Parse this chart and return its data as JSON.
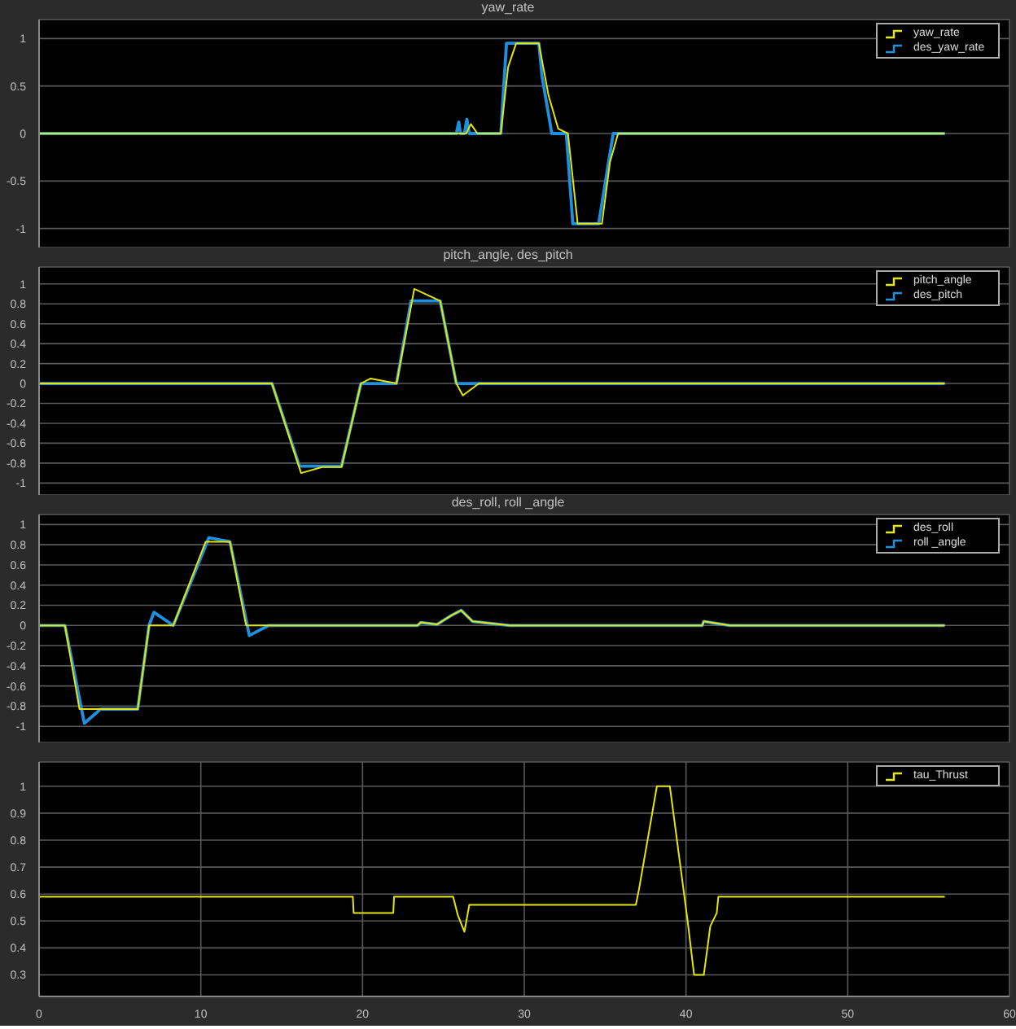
{
  "chart_data": [
    {
      "type": "line",
      "title": "yaw_rate",
      "xlim": [
        0,
        60
      ],
      "xticks": [
        0,
        10,
        20,
        30,
        40,
        50,
        60
      ],
      "ylim": [
        -1.2,
        1.2
      ],
      "yticks": [
        -1,
        -0.5,
        0,
        0.5,
        1
      ],
      "grid": true,
      "legend": "top right",
      "tick_labels": "y",
      "series": [
        {
          "name": "yaw_rate",
          "color": "#e6e600",
          "x": [
            0,
            25.8,
            26.4,
            26.7,
            27.1,
            28.55,
            29.0,
            29.5,
            30.9,
            31.5,
            32.1,
            32.7,
            33.3,
            34.8,
            35.3,
            35.8,
            56
          ],
          "values": [
            0,
            0,
            0,
            0.1,
            0,
            0,
            0.7,
            0.95,
            0.95,
            0.4,
            0.05,
            0,
            -0.95,
            -0.95,
            -0.3,
            0,
            0
          ]
        },
        {
          "name": "des_yaw_rate",
          "color": "#1e90e0",
          "x": [
            0,
            25.8,
            25.95,
            26.05,
            26.3,
            26.45,
            26.6,
            28.55,
            28.9,
            30.9,
            31.1,
            31.7,
            32.6,
            33.0,
            34.6,
            35.5,
            56
          ],
          "values": [
            0,
            0,
            0.12,
            0,
            0,
            0.15,
            0,
            0,
            0.95,
            0.95,
            0.6,
            0,
            0,
            -0.95,
            -0.95,
            0,
            0
          ]
        }
      ]
    },
    {
      "type": "line",
      "title": "pitch_angle, des_pitch",
      "xlim": [
        0,
        60
      ],
      "xticks": [
        0,
        10,
        20,
        30,
        40,
        50,
        60
      ],
      "ylim": [
        -1.12,
        1.17
      ],
      "yticks": [
        -1,
        -0.8,
        -0.6,
        -0.4,
        -0.2,
        0,
        0.2,
        0.4,
        0.6,
        0.8,
        1
      ],
      "grid": true,
      "legend": "top right",
      "tick_labels": "y",
      "series": [
        {
          "name": "pitch_angle",
          "color": "#e6e600",
          "x": [
            0,
            14.4,
            15.3,
            16.2,
            17.5,
            18.7,
            19.9,
            20.5,
            22.1,
            23.2,
            24.8,
            25.8,
            26.2,
            27.2,
            56
          ],
          "values": [
            0,
            0,
            -0.45,
            -0.9,
            -0.84,
            -0.84,
            0,
            0.05,
            0,
            0.95,
            0.83,
            0,
            -0.12,
            0,
            0
          ]
        },
        {
          "name": "des_pitch",
          "color": "#1e90e0",
          "x": [
            0,
            14.4,
            16.1,
            18.7,
            19.9,
            22.1,
            23.0,
            24.8,
            25.8,
            56
          ],
          "values": [
            0,
            0,
            -0.83,
            -0.83,
            0,
            0,
            0.83,
            0.83,
            0,
            0
          ]
        }
      ]
    },
    {
      "type": "line",
      "title": "des_roll, roll _angle",
      "xlim": [
        0,
        60
      ],
      "xticks": [
        0,
        10,
        20,
        30,
        40,
        50,
        60
      ],
      "ylim": [
        -1.16,
        1.1
      ],
      "yticks": [
        -1,
        -0.8,
        -0.6,
        -0.4,
        -0.2,
        0,
        0.2,
        0.4,
        0.6,
        0.8,
        1
      ],
      "grid": true,
      "legend": "top right",
      "tick_labels": "y",
      "series": [
        {
          "name": "des_roll",
          "color": "#e6e600",
          "x": [
            0,
            1.6,
            2.5,
            6.1,
            6.8,
            8.3,
            10.3,
            11.8,
            12.8,
            23.4,
            23.6,
            24.6,
            25.5,
            26.1,
            26.8,
            29.1,
            41.0,
            41.1,
            42.7,
            56
          ],
          "values": [
            0,
            0,
            -0.83,
            -0.83,
            0,
            0,
            0.83,
            0.83,
            0,
            0,
            0.03,
            0.01,
            0.1,
            0.15,
            0.04,
            0,
            0,
            0.04,
            0,
            0
          ]
        },
        {
          "name": "roll _angle",
          "color": "#1e90e0",
          "x": [
            0,
            1.6,
            2.8,
            3.8,
            6.1,
            6.8,
            7.1,
            8.3,
            10.5,
            11.8,
            13.0,
            14.2,
            23.4,
            23.6,
            24.6,
            25.5,
            26.1,
            26.8,
            29.1,
            41.0,
            41.1,
            42.7,
            56
          ],
          "values": [
            0,
            0,
            -0.97,
            -0.83,
            -0.83,
            0,
            0.13,
            0,
            0.87,
            0.83,
            -0.1,
            0,
            0,
            0.03,
            0.01,
            0.1,
            0.15,
            0.04,
            0,
            0,
            0.04,
            0,
            0
          ]
        }
      ]
    },
    {
      "type": "line",
      "xlim": [
        0,
        60
      ],
      "xticks": [
        0,
        10,
        20,
        30,
        40,
        50,
        60
      ],
      "ylim": [
        0.22,
        1.09
      ],
      "yticks": [
        0.3,
        0.4,
        0.5,
        0.6,
        0.7,
        0.8,
        0.9,
        1
      ],
      "grid": true,
      "legend": "top right",
      "series": [
        {
          "name": "tau_Thrust",
          "color": "#e6e600",
          "x": [
            0,
            19.4,
            19.45,
            21.9,
            21.95,
            25.6,
            25.9,
            26.3,
            26.6,
            36.9,
            37.1,
            38.2,
            39.0,
            40.1,
            40.5,
            41.1,
            41.5,
            41.9,
            42.0,
            56
          ],
          "values": [
            0.59,
            0.59,
            0.53,
            0.53,
            0.59,
            0.59,
            0.52,
            0.46,
            0.56,
            0.56,
            0.62,
            1.0,
            1.0,
            0.5,
            0.3,
            0.3,
            0.48,
            0.53,
            0.59,
            0.59
          ]
        }
      ]
    }
  ]
}
